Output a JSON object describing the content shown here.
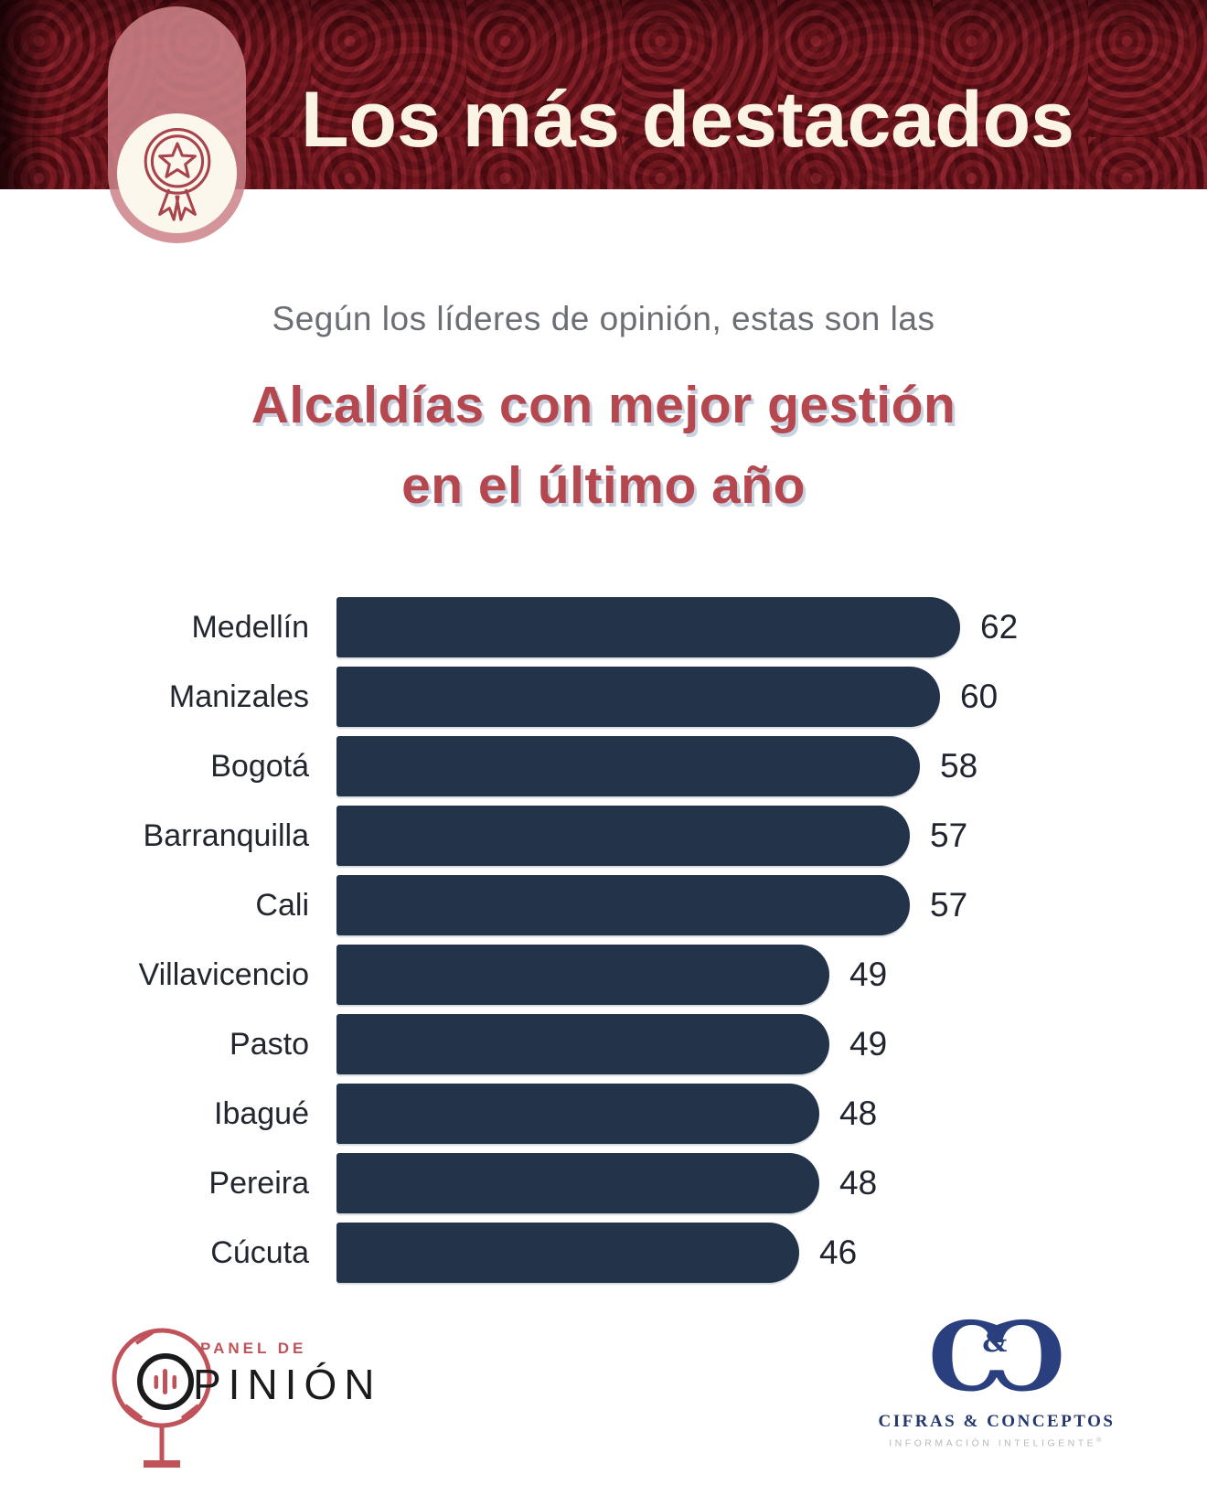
{
  "header": {
    "title": "Los más destacados",
    "badge_icon": "award-medal-icon"
  },
  "intro": {
    "kicker": "Según los líderes de opinión, estas son las",
    "heading_line1": "Alcaldías con mejor gestión",
    "heading_line2": "en el último año"
  },
  "chart_data": {
    "type": "bar",
    "orientation": "horizontal",
    "title": "Alcaldías con mejor gestión en el último año",
    "categories": [
      "Medellín",
      "Manizales",
      "Bogotá",
      "Barranquilla",
      "Cali",
      "Villavicencio",
      "Pasto",
      "Ibagué",
      "Pereira",
      "Cúcuta"
    ],
    "values": [
      62,
      60,
      58,
      57,
      57,
      49,
      49,
      48,
      48,
      46
    ],
    "xlim": [
      0,
      62
    ],
    "value_labels": true,
    "grid": false,
    "legend": false,
    "bar_color": "#233349"
  },
  "footer": {
    "panel_logo": {
      "icon": "microphone-icon",
      "line1": "PANEL DE",
      "line2": "PINIÓN"
    },
    "cifras_logo": {
      "monogram": [
        "C",
        "C"
      ],
      "amp": "&",
      "name": "CIFRAS & CONCEPTOS",
      "tagline": "INFORMACIÓN INTELIGENTE",
      "registered": "®"
    }
  },
  "colors": {
    "banner_red": "#4e0d12",
    "badge_pill": "#cc8389",
    "cream": "#fcf7ec",
    "heading_red": "#b5484f",
    "heading_shadow": "#becadA",
    "subtitle_gray": "#6b6e74",
    "bar_navy": "#233349",
    "panel_red": "#c0525a",
    "panel_black": "#1a1b1d",
    "cc_navy": "#2a3f7d",
    "cc_gray": "#b4b8bf"
  }
}
